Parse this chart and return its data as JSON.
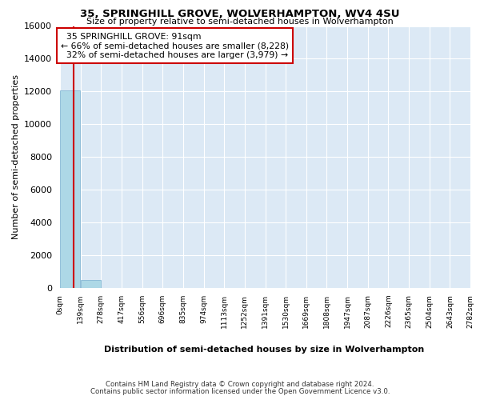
{
  "title_line1": "35, SPRINGHILL GROVE, WOLVERHAMPTON, WV4 4SU",
  "title_line2": "Size of property relative to semi-detached houses in Wolverhampton",
  "xlabel": "Distribution of semi-detached houses by size in Wolverhampton",
  "ylabel": "Number of semi-detached properties",
  "property_size": 91,
  "property_label": "35 SPRINGHILL GROVE: 91sqm",
  "pct_smaller": 66,
  "n_smaller": 8228,
  "pct_larger": 32,
  "n_larger": 3979,
  "bin_edges": [
    0,
    139,
    278,
    417,
    556,
    696,
    835,
    974,
    1113,
    1252,
    1391,
    1530,
    1669,
    1808,
    1947,
    2087,
    2226,
    2365,
    2504,
    2643,
    2782
  ],
  "bar_heights": [
    12050,
    480,
    15,
    5,
    3,
    2,
    1,
    1,
    1,
    0,
    0,
    0,
    0,
    0,
    0,
    0,
    0,
    0,
    0,
    0
  ],
  "bar_color": "#add8e6",
  "bar_edge_color": "#7ab0d0",
  "vline_color": "#cc0000",
  "annotation_box_edge": "#cc0000",
  "background_color": "#dce9f5",
  "ylim": [
    0,
    16000
  ],
  "yticks": [
    0,
    2000,
    4000,
    6000,
    8000,
    10000,
    12000,
    14000,
    16000
  ],
  "footer_line1": "Contains HM Land Registry data © Crown copyright and database right 2024.",
  "footer_line2": "Contains public sector information licensed under the Open Government Licence v3.0."
}
